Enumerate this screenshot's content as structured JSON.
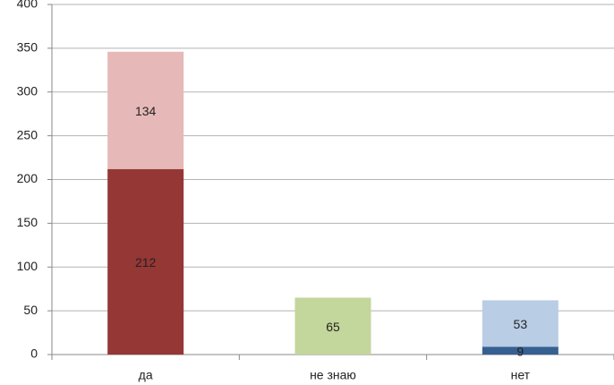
{
  "chart_data": {
    "type": "stacked_bar",
    "categories": [
      "да",
      "не знаю",
      "нет"
    ],
    "series": [
      {
        "values": [
          212,
          null,
          9
        ],
        "colors": [
          "#953735",
          null,
          "#376092"
        ]
      },
      {
        "values": [
          134,
          65,
          53
        ],
        "colors": [
          "#e6b9b8",
          "#c3d69b",
          "#b9cde5"
        ]
      }
    ],
    "ylim": [
      0,
      400
    ],
    "yticks": [
      0,
      50,
      100,
      150,
      200,
      250,
      300,
      350,
      400
    ],
    "grid": true
  }
}
